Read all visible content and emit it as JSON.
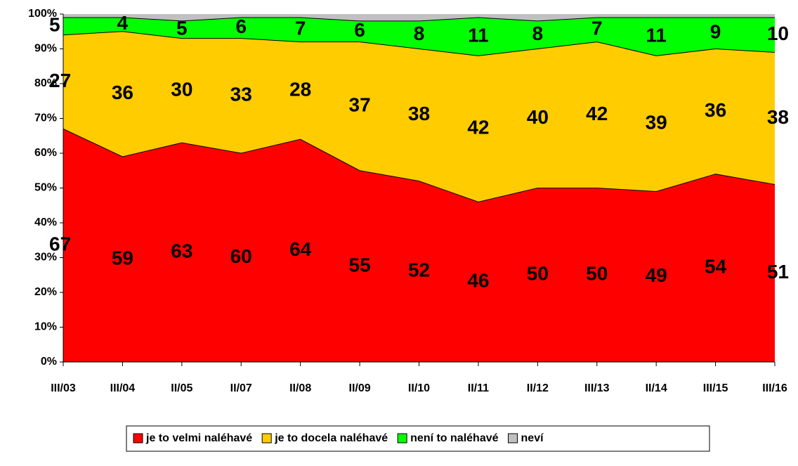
{
  "chart_data": {
    "type": "stacked_area",
    "categories": [
      "III/03",
      "III/04",
      "II/05",
      "II/07",
      "II/08",
      "II/09",
      "II/10",
      "II/11",
      "II/12",
      "III/13",
      "II/14",
      "III/15",
      "III/16"
    ],
    "series": [
      {
        "name": "je to velmi naléhavé",
        "color": "#ff0000",
        "values": [
          67,
          59,
          63,
          60,
          64,
          55,
          52,
          46,
          50,
          50,
          49,
          54,
          51
        ]
      },
      {
        "name": "je to docela naléhavé",
        "color": "#ffcc00",
        "values": [
          27,
          36,
          30,
          33,
          28,
          37,
          38,
          42,
          40,
          42,
          39,
          36,
          38
        ]
      },
      {
        "name": "není to naléhavé",
        "color": "#00ff00",
        "values": [
          5,
          4,
          5,
          6,
          7,
          6,
          8,
          11,
          8,
          7,
          11,
          9,
          10
        ]
      },
      {
        "name": "neví",
        "color": "#c0c0c0",
        "values": [
          1,
          1,
          2,
          1,
          1,
          2,
          2,
          1,
          2,
          1,
          1,
          1,
          1
        ]
      }
    ],
    "labeled_series": [
      0,
      1,
      2
    ],
    "ylim": [
      0,
      100
    ],
    "yticks": [
      {
        "value": 0,
        "label": "0%"
      },
      {
        "value": 10,
        "label": "10%"
      },
      {
        "value": 20,
        "label": "20%"
      },
      {
        "value": 30,
        "label": "30%"
      },
      {
        "value": 40,
        "label": "40%"
      },
      {
        "value": 50,
        "label": "50%"
      },
      {
        "value": 60,
        "label": "60%"
      },
      {
        "value": 70,
        "label": "70%"
      },
      {
        "value": 80,
        "label": "80%"
      },
      {
        "value": 90,
        "label": "90%"
      },
      {
        "value": 100,
        "label": "100%"
      }
    ],
    "legend": "bottom"
  }
}
